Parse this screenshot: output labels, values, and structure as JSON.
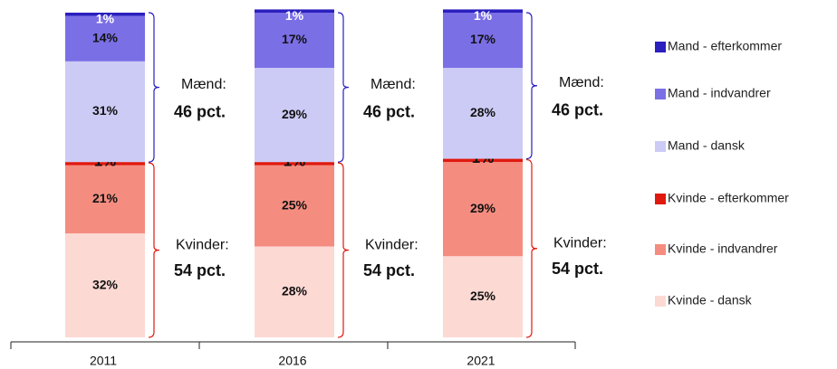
{
  "chart_data": {
    "type": "stacked_bar",
    "categories": [
      "2011",
      "2016",
      "2021"
    ],
    "series": [
      {
        "name": "Kvinde - dansk",
        "color": "#fdd9d4",
        "values": [
          32,
          28,
          25
        ],
        "value_labels": [
          "32%",
          "28%",
          "25%"
        ]
      },
      {
        "name": "Kvinde - indvandrer",
        "color": "#f48d80",
        "values": [
          21,
          25,
          29
        ],
        "value_labels": [
          "21%",
          "25%",
          "29%"
        ]
      },
      {
        "name": "Kvinde - efterkommer",
        "color": "#e0190f",
        "values": [
          1,
          1,
          1
        ],
        "value_labels": [
          "1%",
          "1%",
          "1%"
        ]
      },
      {
        "name": "Mand - dansk",
        "color": "#cccbf5",
        "values": [
          31,
          29,
          28
        ],
        "value_labels": [
          "31%",
          "29%",
          "28%"
        ]
      },
      {
        "name": "Mand - indvandrer",
        "color": "#7b6fe6",
        "values": [
          14,
          17,
          17
        ],
        "value_labels": [
          "14%",
          "17%",
          "17%"
        ]
      },
      {
        "name": "Mand - efterkommer",
        "color": "#2b1fbf",
        "values": [
          1,
          1,
          1
        ],
        "value_labels": [
          "1%",
          "1%",
          "1%"
        ]
      }
    ],
    "annotations": [
      {
        "men_label": "Mænd:",
        "men_value": "46 pct.",
        "women_label": "Kvinder:",
        "women_value": "54 pct."
      },
      {
        "men_label": "Mænd:",
        "men_value": "46 pct.",
        "women_label": "Kvinder:",
        "women_value": "54 pct."
      },
      {
        "men_label": "Mænd:",
        "men_value": "46 pct.",
        "women_label": "Kvinder:",
        "women_value": "54 pct."
      }
    ],
    "ylim": [
      0,
      100
    ]
  }
}
